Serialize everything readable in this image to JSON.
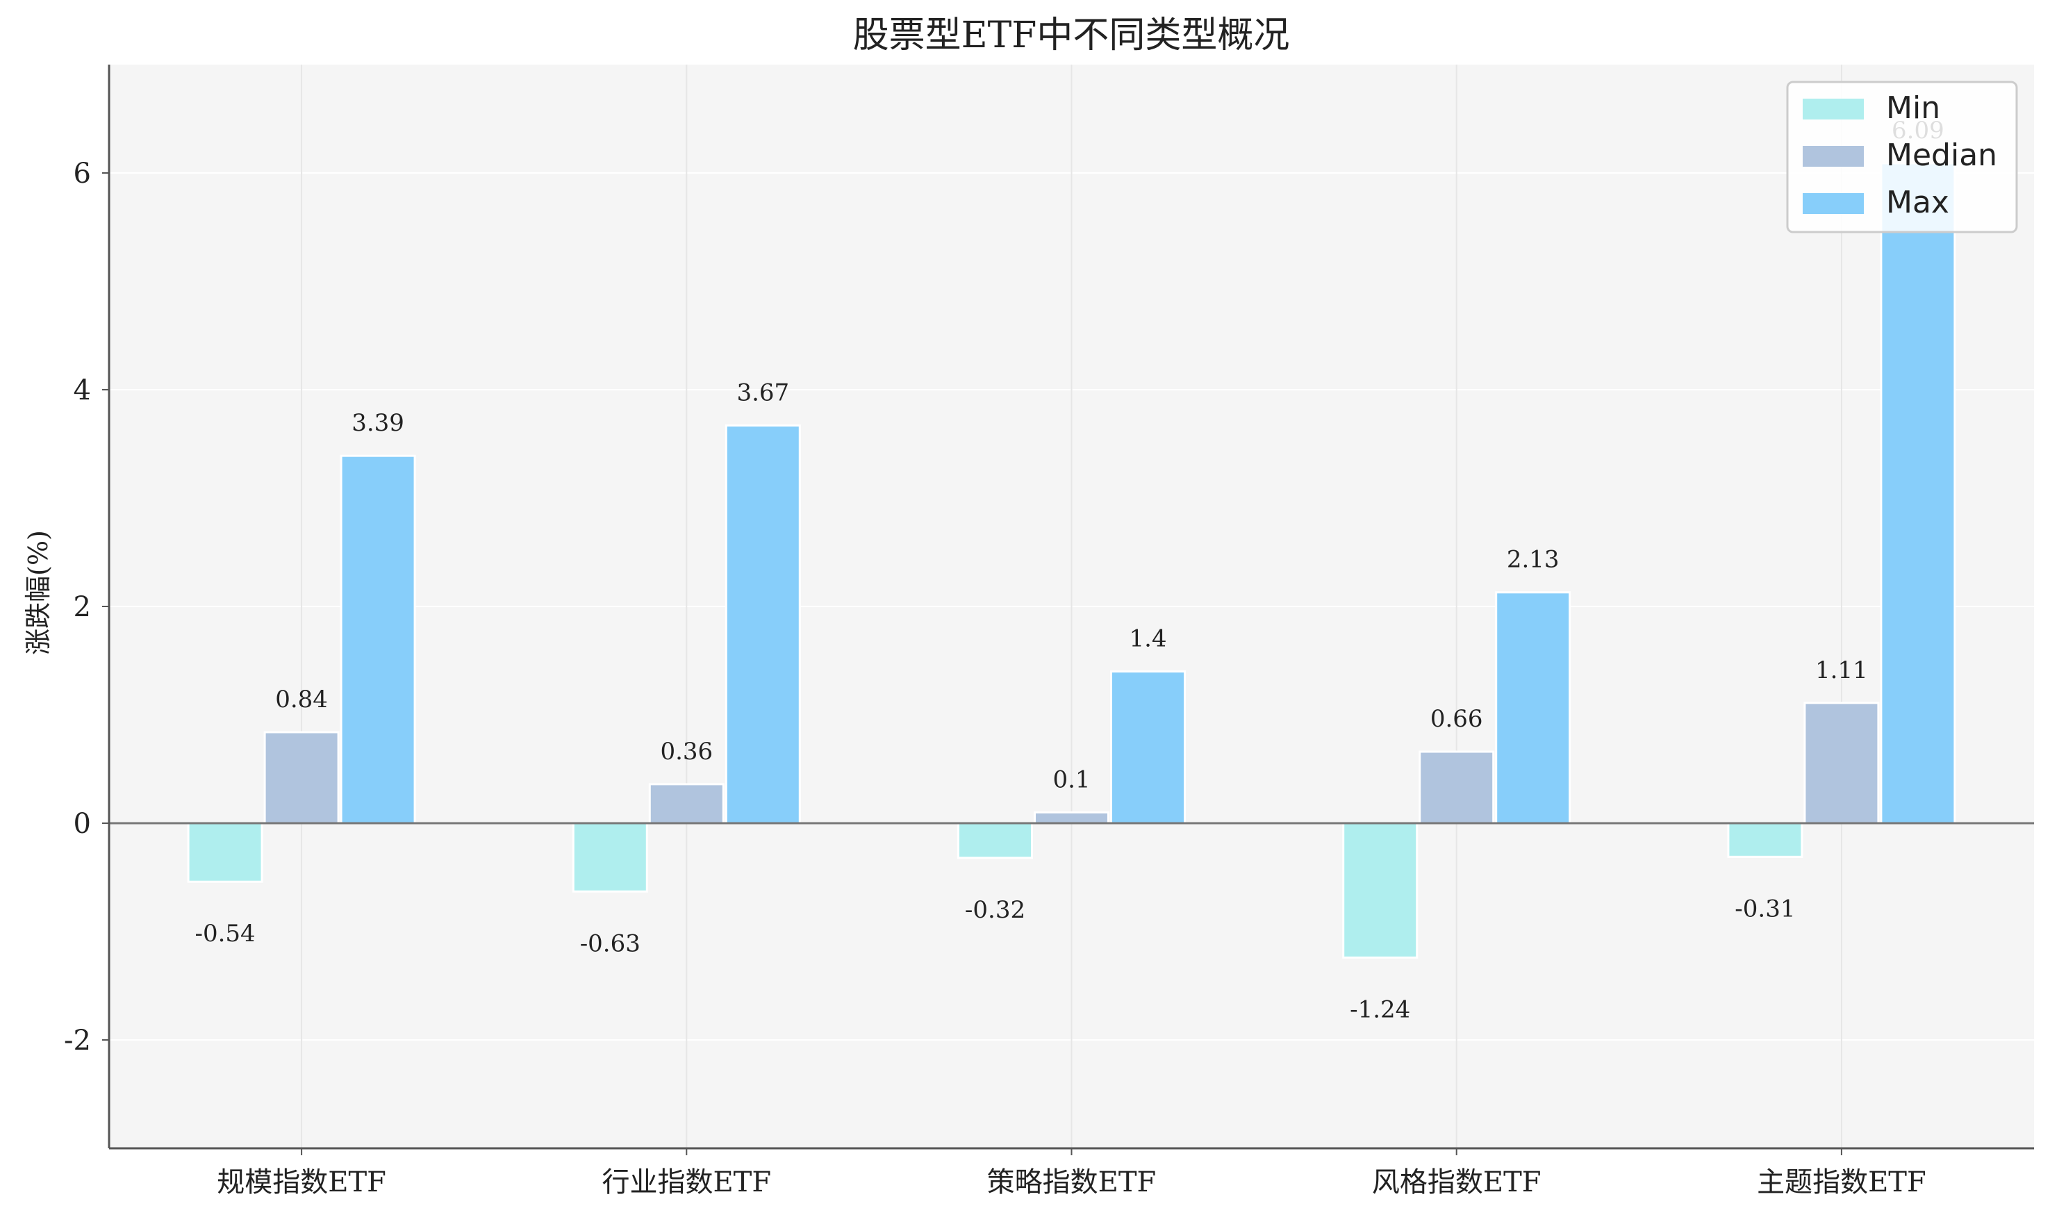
{
  "chart_data": {
    "type": "bar",
    "title": "股票型ETF中不同类型概况",
    "ylabel": "涨跌幅(%)",
    "xlabel": "",
    "categories": [
      "规模指数ETF",
      "行业指数ETF",
      "策略指数ETF",
      "风格指数ETF",
      "主题指数ETF"
    ],
    "series": [
      {
        "name": "Min",
        "values": [
          -0.54,
          -0.63,
          -0.32,
          -1.24,
          -0.31
        ],
        "labels": [
          "-0.54",
          "-0.63",
          "-0.32",
          "-1.24",
          "-0.31"
        ],
        "color": "#AFEEEE"
      },
      {
        "name": "Median",
        "values": [
          0.84,
          0.36,
          0.1,
          0.66,
          1.11
        ],
        "labels": [
          "0.84",
          "0.36",
          "0.1",
          "0.66",
          "1.11"
        ],
        "color": "#B0C4DE"
      },
      {
        "name": "Max",
        "values": [
          3.39,
          3.67,
          1.4,
          2.13,
          6.09
        ],
        "labels": [
          "3.39",
          "3.67",
          "1.4",
          "2.13",
          "6.09"
        ],
        "color": "#87CEFA"
      }
    ],
    "ylim": [
      -3,
      7
    ],
    "yticks": [
      -2,
      0,
      2,
      4,
      6
    ],
    "ytick_labels": [
      "-2",
      "0",
      "2",
      "4",
      "6"
    ],
    "grid": true,
    "legend_position": "top-right",
    "colors": {
      "plot_background": "#F5F5F5",
      "grid": "#FFFFFF",
      "vertical_grid": "#E6E6E6",
      "axis": "#555555",
      "zero_line": "#777777",
      "text": "#222222"
    }
  }
}
